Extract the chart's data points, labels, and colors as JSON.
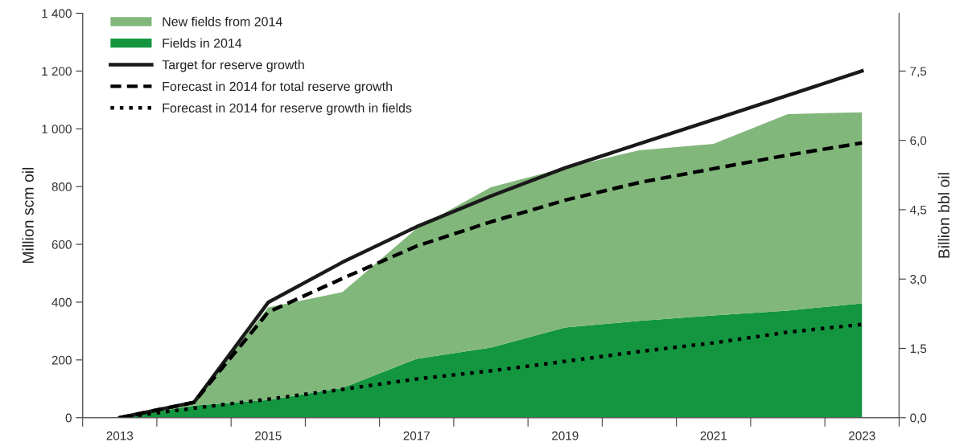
{
  "chart_data": {
    "type": "area",
    "ylabel": "Million scm oil",
    "y2label": "Billion bbl oil",
    "x": [
      2013,
      2014,
      2015,
      2016,
      2017,
      2018,
      2019,
      2020,
      2021,
      2022,
      2023
    ],
    "stacked": true,
    "legend": "top left",
    "grid": false,
    "series": [
      {
        "name": "Fields in 2014",
        "color": "#13963f",
        "values": [
          0,
          42,
          61,
          103,
          204,
          243,
          312,
          335,
          354,
          371,
          396
        ]
      },
      {
        "name": "New fields from 2014",
        "color": "#82b77b",
        "values": [
          0,
          11,
          321,
          332,
          451,
          555,
          553,
          591,
          594,
          680,
          661
        ]
      },
      {
        "name": "Target for reserve growth",
        "type": "line",
        "color": "#1a1a1a",
        "line_style": "solid",
        "values": [
          0,
          53,
          399,
          538,
          661,
          767,
          865,
          948,
          1032,
          1116,
          1200
        ]
      },
      {
        "name": "Forecast in 2014 for total reserve growth",
        "type": "line",
        "color": "#000000",
        "line_style": "dashed",
        "values": [
          0,
          53,
          365,
          482,
          594,
          678,
          753,
          814,
          862,
          909,
          951
        ]
      },
      {
        "name": "Forecast in 2014 for reserve growth in fields",
        "type": "line",
        "color": "#000000",
        "line_style": "dotted",
        "values": [
          0,
          33,
          64,
          98,
          134,
          162,
          195,
          229,
          259,
          296,
          323
        ]
      }
    ],
    "xlim": [
      2012.5,
      2023.5
    ],
    "xticks": [
      {
        "value": 2012.5,
        "label": null
      },
      {
        "value": 2013,
        "label": "2013"
      },
      {
        "value": 2013.5,
        "label": null
      },
      {
        "value": 2014.5,
        "label": null
      },
      {
        "value": 2015,
        "label": "2015"
      },
      {
        "value": 2015.5,
        "label": null
      },
      {
        "value": 2016.5,
        "label": null
      },
      {
        "value": 2017,
        "label": "2017"
      },
      {
        "value": 2017.5,
        "label": null
      },
      {
        "value": 2018.5,
        "label": null
      },
      {
        "value": 2019,
        "label": "2019"
      },
      {
        "value": 2019.5,
        "label": null
      },
      {
        "value": 2020.5,
        "label": null
      },
      {
        "value": 2021,
        "label": "2021"
      },
      {
        "value": 2021.5,
        "label": null
      },
      {
        "value": 2022.5,
        "label": null
      },
      {
        "value": 2023,
        "label": "2023"
      },
      {
        "value": 2023.5,
        "label": null
      }
    ],
    "ylim": [
      0,
      1400
    ],
    "yticks": [
      0,
      200,
      400,
      600,
      800,
      {
        "value": 1000,
        "label": "1 000"
      },
      {
        "value": 1200,
        "label": "1 200"
      },
      {
        "value": 1400,
        "label": "1 400"
      }
    ],
    "y2lim": [
      0,
      8.75
    ],
    "y2ticks": [
      {
        "value": 0,
        "label": "0,0"
      },
      {
        "value": 1.5,
        "label": "1,5"
      },
      {
        "value": 3,
        "label": "3,0"
      },
      {
        "value": 4.5,
        "label": "4,5"
      },
      {
        "value": 6,
        "label": "6,0"
      },
      {
        "value": 7.5,
        "label": "7,5"
      }
    ]
  }
}
